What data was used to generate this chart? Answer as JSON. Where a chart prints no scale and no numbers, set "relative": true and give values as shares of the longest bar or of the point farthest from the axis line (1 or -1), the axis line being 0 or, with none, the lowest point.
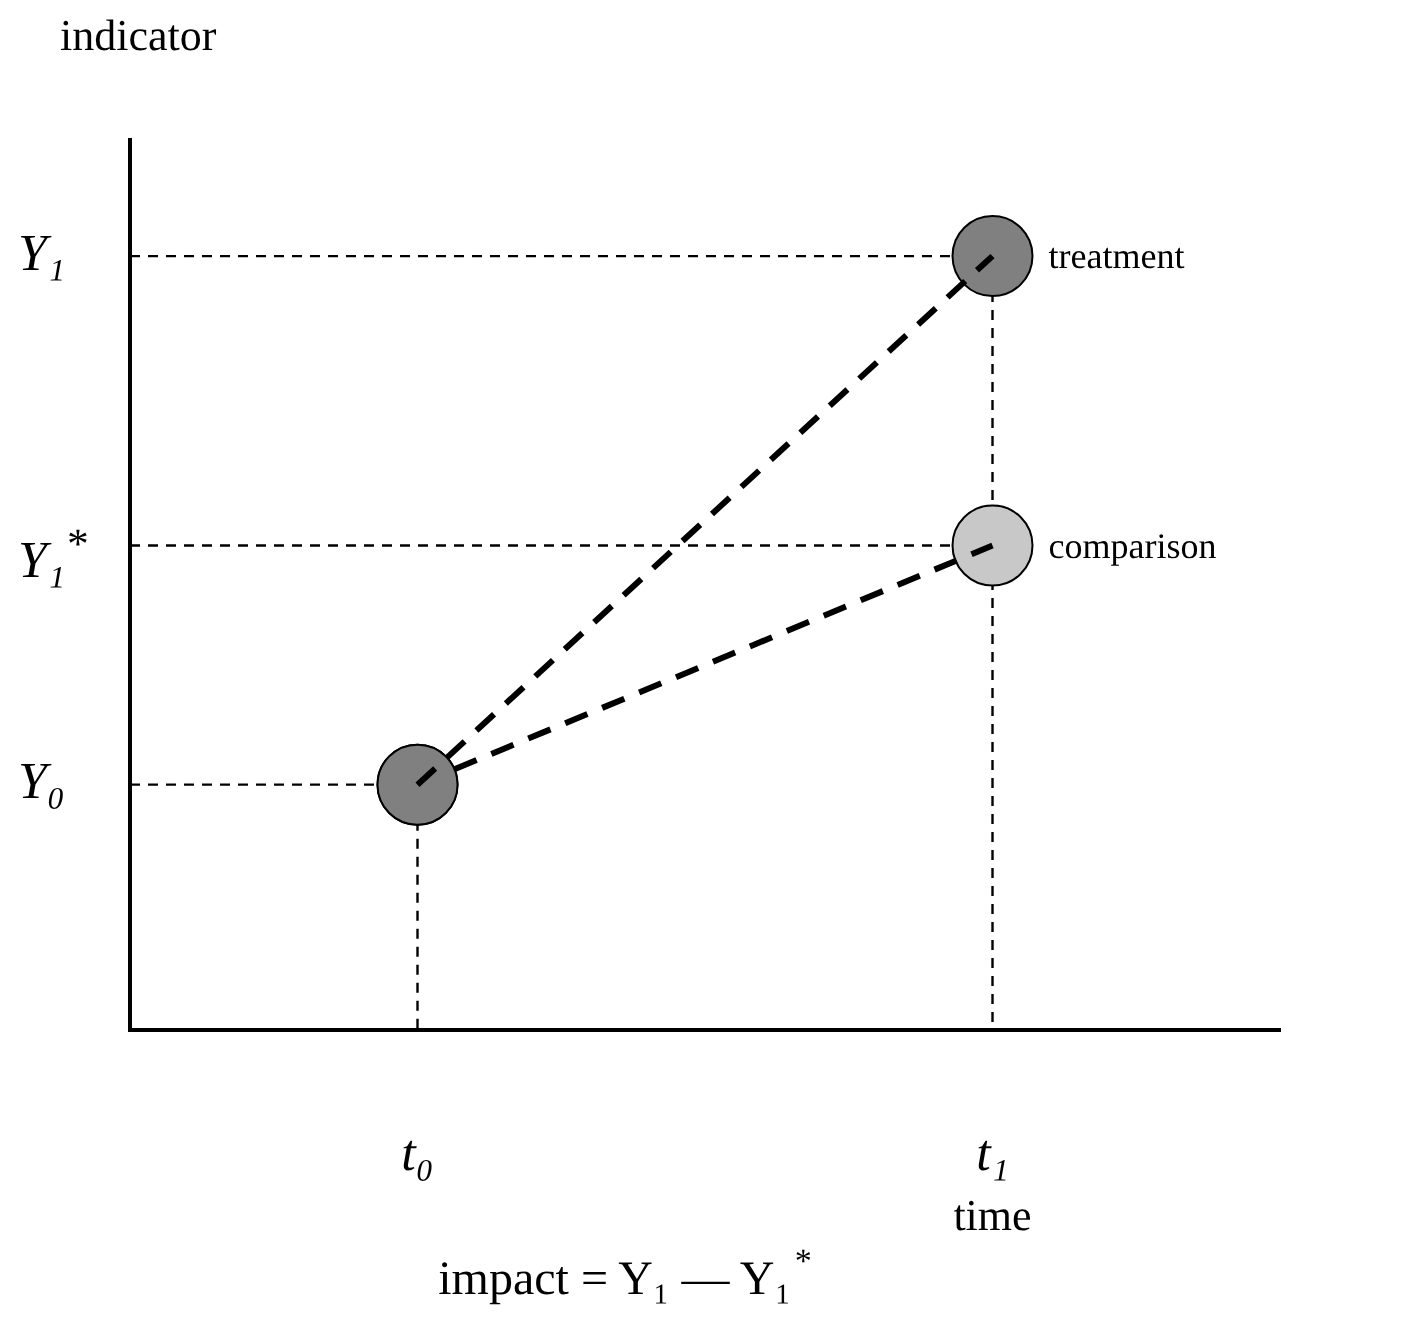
{
  "chart_data": {
    "type": "line",
    "relative": true,
    "categories": [
      "t₀",
      "t₁"
    ],
    "ref_lines": [
      {
        "axis": "y",
        "value": 0.317,
        "label": "Y₀",
        "line_style": "dashed"
      },
      {
        "axis": "y",
        "value": 0.626,
        "label": "Y₁$^{*}$",
        "line_style": "dashed"
      },
      {
        "axis": "y",
        "value": 1,
        "label": "Y₁",
        "line_style": "dashed"
      },
      {
        "axis": "x",
        "value": "t₀",
        "line_style": "dashed"
      },
      {
        "axis": "x",
        "value": "t₁",
        "line_style": "dashed"
      }
    ],
    "xlabel": "time",
    "ylabel": "indicator",
    "series": [
      {
        "name": "treatment",
        "color": "#000000",
        "colors": [
          "#808080",
          "#808080"
        ],
        "values": [
          0.317,
          1
        ]
      },
      {
        "name": "comparison",
        "color": "#000000",
        "colors": [
          "#808080",
          "#c8c8c8"
        ],
        "values": [
          0.317,
          0.626
        ]
      }
    ],
    "annotations": [
      "impact = Y₁ — Y₁$^{*}$"
    ],
    "marker": "circle",
    "line_style": "dashed",
    "legend": false,
    "grid": false
  }
}
